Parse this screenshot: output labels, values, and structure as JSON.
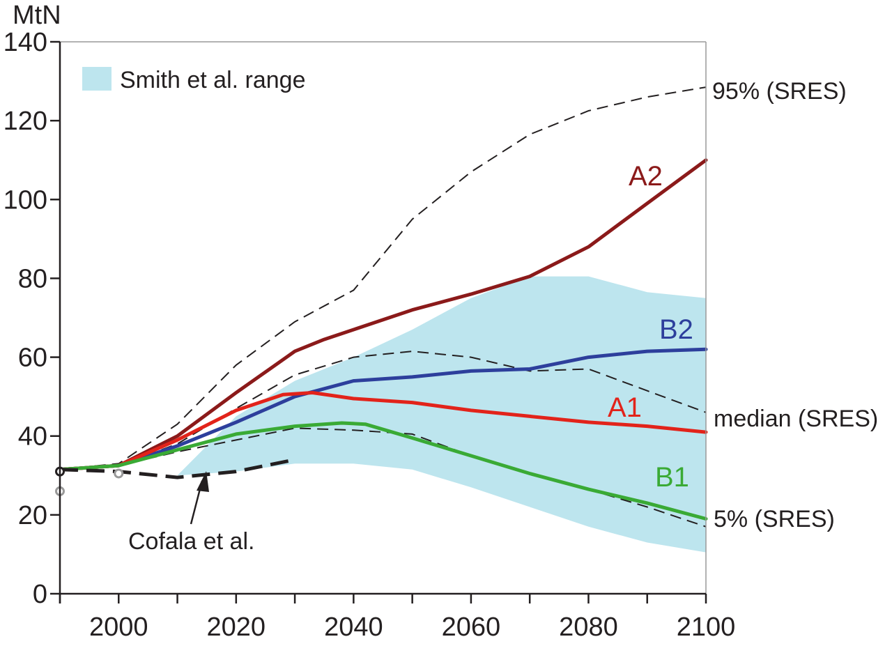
{
  "chart_data": {
    "type": "line",
    "ylabel": "MtN",
    "xlim": [
      1990,
      2100
    ],
    "ylim": [
      0,
      140
    ],
    "x_ticks": [
      2000,
      2020,
      2040,
      2060,
      2080,
      2100
    ],
    "x_tick_labels": [
      "2000",
      "2020",
      "2040",
      "2060",
      "2080",
      "2100"
    ],
    "y_ticks": [
      0,
      20,
      40,
      60,
      80,
      100,
      120,
      140
    ],
    "y_tick_labels": [
      "0",
      "20",
      "40",
      "60",
      "80",
      "100",
      "120",
      "140"
    ],
    "grid": false,
    "band": {
      "label": "Smith et al. range",
      "color": "#bde5ee",
      "x": [
        1990,
        2000,
        2010,
        2020,
        2030,
        2040,
        2050,
        2060,
        2070,
        2080,
        2090,
        2100
      ],
      "lower": [
        26,
        28,
        30,
        31,
        33,
        33,
        31.5,
        27,
        22,
        17,
        13,
        10.5
      ],
      "upper": [
        26,
        28,
        30,
        45,
        54,
        60,
        67,
        75,
        80.5,
        80.5,
        76.5,
        75
      ]
    },
    "series": [
      {
        "name": "A2",
        "color": "#8b1a1a",
        "x": [
          1990,
          2000,
          2010,
          2020,
          2030,
          2035,
          2040,
          2050,
          2060,
          2070,
          2080,
          2090,
          2100
        ],
        "y": [
          31.5,
          32.5,
          40,
          51,
          61.5,
          64.5,
          67,
          72,
          76,
          80.5,
          88,
          99,
          110
        ]
      },
      {
        "name": "B2",
        "color": "#2d3f9c",
        "x": [
          1990,
          2000,
          2010,
          2020,
          2030,
          2040,
          2050,
          2060,
          2070,
          2080,
          2090,
          2100
        ],
        "y": [
          31.5,
          32.5,
          37.5,
          43.5,
          50,
          54,
          55,
          56.5,
          57,
          60,
          61.5,
          62
        ]
      },
      {
        "name": "A1",
        "color": "#e2231a",
        "x": [
          1990,
          2000,
          2010,
          2020,
          2028,
          2033,
          2040,
          2050,
          2060,
          2070,
          2080,
          2090,
          2100
        ],
        "y": [
          31.5,
          32.5,
          39,
          46.5,
          50.5,
          51,
          49.5,
          48.5,
          46.5,
          45,
          43.5,
          42.5,
          41
        ]
      },
      {
        "name": "B1",
        "color": "#3aaa35",
        "x": [
          1990,
          2000,
          2010,
          2020,
          2030,
          2038,
          2042,
          2050,
          2060,
          2070,
          2080,
          2090,
          2100
        ],
        "y": [
          31.5,
          32.5,
          36.5,
          40.5,
          42.5,
          43.3,
          43,
          39.5,
          35,
          30.5,
          26.5,
          23,
          19
        ]
      }
    ],
    "sres_lines": [
      {
        "label": "95% (SRES)",
        "x": [
          1990,
          2000,
          2010,
          2020,
          2030,
          2040,
          2050,
          2060,
          2070,
          2080,
          2090,
          2100
        ],
        "y": [
          31.5,
          33,
          43,
          58,
          69,
          77,
          95,
          107,
          116.5,
          122.5,
          126,
          128.5
        ]
      },
      {
        "label": "median (SRES)",
        "x": [
          1990,
          2000,
          2010,
          2020,
          2030,
          2040,
          2050,
          2060,
          2070,
          2080,
          2090,
          2100
        ],
        "y": [
          31.5,
          32.5,
          38,
          47,
          55.5,
          60,
          61.5,
          60,
          56.5,
          57,
          51.5,
          46
        ]
      },
      {
        "label": "5% (SRES)",
        "x": [
          1990,
          2000,
          2010,
          2020,
          2030,
          2040,
          2050,
          2060,
          2070,
          2080,
          2090,
          2100
        ],
        "y": [
          31.5,
          32.5,
          36,
          39,
          42,
          41.5,
          40.5,
          35,
          30.5,
          26.5,
          22,
          17
        ]
      }
    ],
    "cofala": {
      "label": "Cofala et al.",
      "x": [
        1990,
        2000,
        2010,
        2020,
        2030
      ],
      "y": [
        31.5,
        31,
        29.5,
        31,
        34
      ]
    },
    "markers": [
      {
        "x": 1990,
        "y": 31,
        "fill": "#ffffff",
        "stroke": "#231f20"
      },
      {
        "x": 1990,
        "y": 26,
        "fill": "#ffffff",
        "stroke": "#999999"
      },
      {
        "x": 2000,
        "y": 30.5,
        "fill": "#ffffff",
        "stroke": "#999999"
      }
    ]
  }
}
